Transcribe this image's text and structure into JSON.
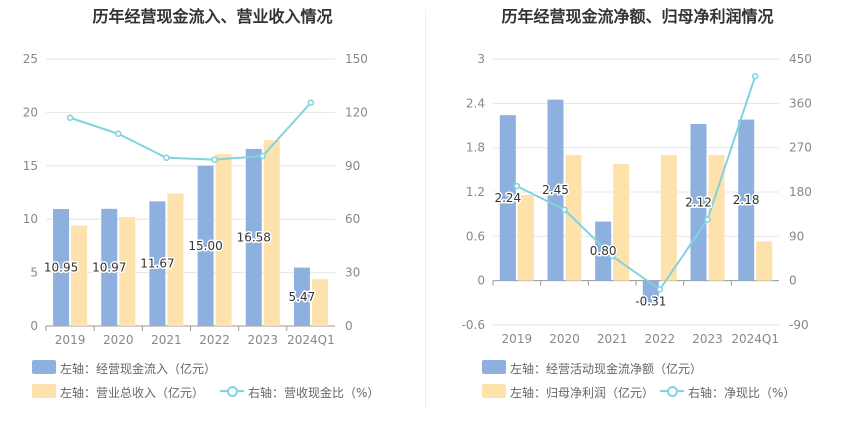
{
  "colors": {
    "bar_primary": "#8eb0de",
    "bar_secondary": "#fde2ab",
    "line": "#80d3df",
    "grid": "#e6e6e6",
    "axis_text": "#888888"
  },
  "chart_data": [
    {
      "type": "bar",
      "title": "历年经营现金流入、营业收入情况",
      "categories": [
        "2019",
        "2020",
        "2021",
        "2022",
        "2023",
        "2024Q1"
      ],
      "y_left": {
        "min": 0,
        "max": 25,
        "ticks": [
          0,
          5,
          10,
          15,
          20,
          25
        ]
      },
      "y_right": {
        "min": 0,
        "max": 150,
        "ticks": [
          0,
          30,
          60,
          90,
          120,
          150
        ]
      },
      "series": [
        {
          "name": "左轴：经营现金流入（亿元）",
          "kind": "bar",
          "axis": "left",
          "values": [
            10.95,
            10.97,
            11.67,
            15.0,
            16.58,
            5.47
          ],
          "labels": [
            "10.95",
            "10.97",
            "11.67",
            "15.00",
            "16.58",
            "5.47"
          ]
        },
        {
          "name": "左轴：营业总收入（亿元）",
          "kind": "bar",
          "axis": "left",
          "values": [
            9.4,
            10.2,
            12.4,
            16.1,
            17.4,
            4.4
          ]
        },
        {
          "name": "右轴：营收现金比（%）",
          "kind": "line",
          "axis": "right",
          "values": [
            117,
            108,
            94.5,
            93.5,
            95.5,
            125.5
          ]
        }
      ],
      "legend": [
        "左轴：经营现金流入（亿元）",
        "左轴：营业总收入（亿元）",
        "右轴：营收现金比（%）"
      ]
    },
    {
      "type": "bar",
      "title": "历年经营现金流净额、归母净利润情况",
      "categories": [
        "2019",
        "2020",
        "2021",
        "2022",
        "2023",
        "2024Q1"
      ],
      "y_left": {
        "min": -0.6,
        "max": 3,
        "ticks": [
          -0.6,
          0,
          0.6,
          1.2,
          1.8,
          2.4,
          3
        ]
      },
      "y_right": {
        "min": -90,
        "max": 450,
        "ticks": [
          -90,
          0,
          90,
          180,
          270,
          360,
          450
        ]
      },
      "series": [
        {
          "name": "左轴：经营活动现金流净额（亿元）",
          "kind": "bar",
          "axis": "left",
          "values": [
            2.24,
            2.45,
            0.8,
            -0.31,
            2.12,
            2.18
          ],
          "labels": [
            "2.24",
            "2.45",
            "0.80",
            "-0.31",
            "2.12",
            "2.18"
          ]
        },
        {
          "name": "左轴：归母净利润（亿元）",
          "kind": "bar",
          "axis": "left",
          "values": [
            1.16,
            1.7,
            1.58,
            1.7,
            1.7,
            0.53
          ]
        },
        {
          "name": "右轴：净现比（%）",
          "kind": "line",
          "axis": "right",
          "values": [
            192,
            144,
            50,
            -18,
            124,
            415
          ]
        }
      ],
      "legend": [
        "左轴：经营活动现金流净额（亿元）",
        "左轴：归母净利润（亿元）",
        "右轴：净现比（%）"
      ]
    }
  ]
}
